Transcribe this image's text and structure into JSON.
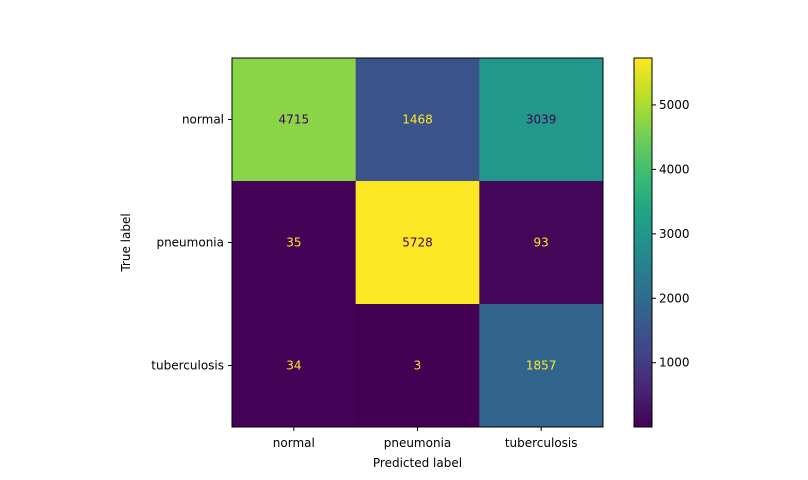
{
  "chart_data": {
    "type": "heatmap",
    "title": "",
    "xlabel": "Predicted label",
    "ylabel": "True label",
    "x_categories": [
      "normal",
      "pneumonia",
      "tuberculosis"
    ],
    "y_categories": [
      "normal",
      "pneumonia",
      "tuberculosis"
    ],
    "values": [
      [
        4715,
        1468,
        3039
      ],
      [
        35,
        5728,
        93
      ],
      [
        34,
        3,
        1857
      ]
    ],
    "colormap": "viridis",
    "colorbar": {
      "min": 3,
      "max": 5728,
      "ticks": [
        1000,
        2000,
        3000,
        4000,
        5000
      ]
    },
    "annotation_colors": {
      "on_dark": "#fde725",
      "on_light": "#440154"
    }
  }
}
